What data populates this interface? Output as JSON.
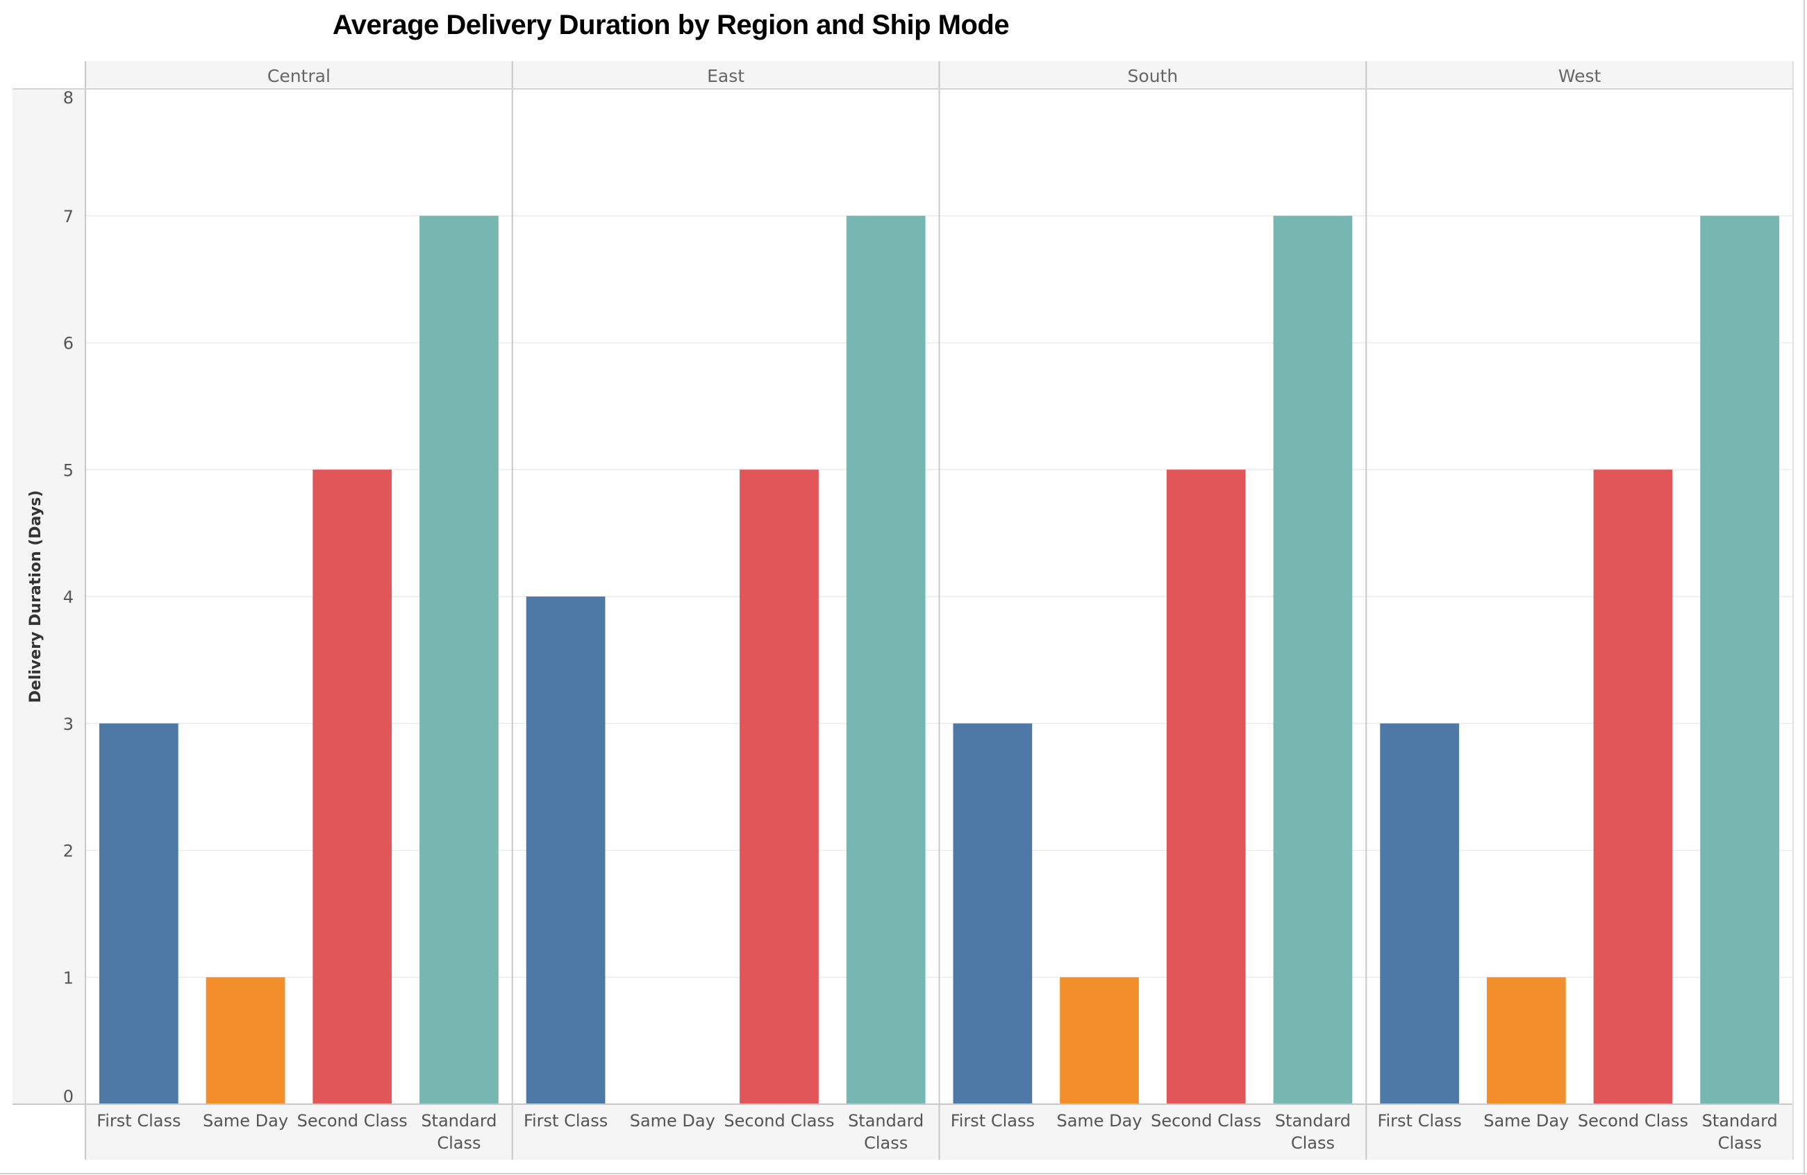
{
  "chart_data": {
    "type": "bar",
    "title": "Average Delivery Duration by Region and Ship Mode",
    "ylabel": "Delivery Duration (Days)",
    "xlabel": "",
    "ylim": [
      0,
      8
    ],
    "yticks": [
      0,
      1,
      2,
      3,
      4,
      5,
      6,
      7,
      8
    ],
    "grid": true,
    "panels": [
      {
        "name": "Central",
        "categories": [
          "First Class",
          "Same Day",
          "Second Class",
          "Standard Class"
        ],
        "values": [
          3,
          1,
          5,
          7
        ]
      },
      {
        "name": "East",
        "categories": [
          "First Class",
          "Same Day",
          "Second Class",
          "Standard Class"
        ],
        "values": [
          4,
          0,
          5,
          7
        ]
      },
      {
        "name": "South",
        "categories": [
          "First Class",
          "Same Day",
          "Second Class",
          "Standard Class"
        ],
        "values": [
          3,
          1,
          5,
          7
        ]
      },
      {
        "name": "West",
        "categories": [
          "First Class",
          "Same Day",
          "Second Class",
          "Standard Class"
        ],
        "values": [
          3,
          1,
          5,
          7
        ]
      }
    ],
    "category_colors": {
      "First Class": "#4e79a7",
      "Same Day": "#f28e2b",
      "Second Class": "#e15759",
      "Standard Class": "#76b7b2"
    }
  }
}
